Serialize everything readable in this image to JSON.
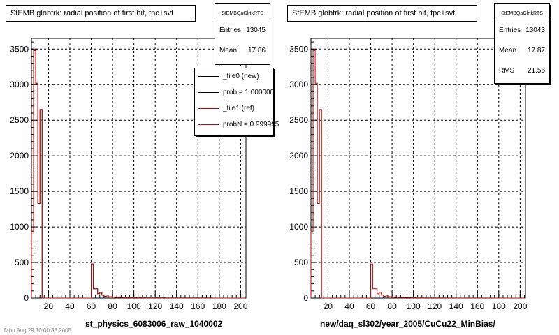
{
  "panels": [
    {
      "title": "StEMB globtrk: radial position of first hit, tpc+svt",
      "xlabel": "st_physics_6083006_raw_1040002",
      "stats": {
        "header": "StEMBQaGlrtkRTS",
        "rows": [
          {
            "label": "Entries",
            "value": "13045"
          },
          {
            "label": "Mean",
            "value": "17.86"
          }
        ]
      },
      "legend": [
        {
          "label": "_file0 (new)",
          "color": "#000000"
        },
        {
          "label": "prob = 1.000000",
          "color": "#000000"
        },
        {
          "label": "_file1 (ref)",
          "color": "#cc0000"
        },
        {
          "label": "probN = 0.999995",
          "color": "#cc0000"
        }
      ]
    },
    {
      "title": "StEMB globtrk: radial position of first hit, tpc+svt",
      "xlabel": "new/daq_sl302/year_2005/CuCu22_MinBias/",
      "stats": {
        "header": "StEMBQaGlrtkRTS",
        "rows": [
          {
            "label": "Entries",
            "value": "13043"
          },
          {
            "label": "Mean",
            "value": "17.87"
          },
          {
            "label": "RMS",
            "value": "21.56"
          }
        ]
      },
      "legend": []
    }
  ],
  "footer": "Mon Aug 29 10:00:33 2005",
  "chart_data": [
    {
      "type": "histogram",
      "title": "StEMB globtrk: radial position of first hit, tpc+svt",
      "xlabel": "st_physics_6083006_raw_1040002",
      "xlim": [
        4,
        205
      ],
      "ylim": [
        0,
        3650
      ],
      "xticks": [
        20,
        40,
        60,
        80,
        100,
        120,
        140,
        160,
        180,
        200
      ],
      "yticks": [
        0,
        500,
        1000,
        1500,
        2000,
        2500,
        3000,
        3500
      ],
      "grid": true,
      "bin_width": 2,
      "bin_start": 4,
      "series": [
        {
          "name": "_file0 (new)",
          "color": "#000000",
          "values": [
            940,
            3480,
            3020,
            1330,
            2650,
            0,
            0,
            0,
            0,
            0,
            0,
            0,
            0,
            0,
            0,
            0,
            0,
            0,
            0,
            0,
            0,
            0,
            0,
            0,
            0,
            0,
            0,
            0,
            480,
            130,
            130,
            60,
            80,
            40,
            25,
            30,
            20,
            20,
            15,
            10,
            12,
            8,
            10,
            6,
            8,
            5,
            6,
            4,
            5,
            4,
            3,
            4,
            3,
            3,
            2,
            2,
            2,
            2,
            2,
            2,
            2,
            2,
            2,
            1,
            1,
            1,
            1,
            1,
            1,
            1,
            1,
            1,
            1,
            1,
            1,
            1,
            1,
            1,
            1,
            1,
            1,
            1,
            1,
            1,
            1,
            0,
            0,
            0,
            0,
            0,
            0,
            0,
            0,
            0,
            0,
            0,
            0,
            0,
            0,
            0
          ]
        },
        {
          "name": "_file1 (ref)",
          "color": "#cc0000",
          "values": [
            940,
            3480,
            3020,
            1330,
            2650,
            0,
            0,
            0,
            0,
            0,
            0,
            0,
            0,
            0,
            0,
            0,
            0,
            0,
            0,
            0,
            0,
            0,
            0,
            0,
            0,
            0,
            0,
            0,
            480,
            130,
            130,
            60,
            80,
            40,
            25,
            30,
            20,
            20,
            15,
            10,
            12,
            8,
            10,
            6,
            8,
            5,
            6,
            4,
            5,
            4,
            3,
            4,
            3,
            3,
            2,
            2,
            2,
            2,
            2,
            2,
            2,
            2,
            2,
            1,
            1,
            1,
            1,
            1,
            1,
            1,
            1,
            1,
            1,
            1,
            1,
            1,
            1,
            1,
            1,
            1,
            1,
            1,
            1,
            1,
            1,
            0,
            0,
            0,
            0,
            0,
            0,
            0,
            0,
            0,
            0,
            0,
            0,
            0,
            0,
            0
          ]
        }
      ]
    },
    {
      "type": "histogram",
      "title": "StEMB globtrk: radial position of first hit, tpc+svt",
      "xlabel": "new/daq_sl302/year_2005/CuCu22_MinBias/",
      "xlim": [
        4,
        205
      ],
      "ylim": [
        0,
        3650
      ],
      "xticks": [
        20,
        40,
        60,
        80,
        100,
        120,
        140,
        160,
        180,
        200
      ],
      "yticks": [
        0,
        500,
        1000,
        1500,
        2000,
        2500,
        3000,
        3500
      ],
      "grid": true,
      "bin_width": 2,
      "bin_start": 4,
      "series": [
        {
          "name": "_file1 (ref)",
          "color": "#cc0000",
          "values": [
            940,
            3480,
            3020,
            1330,
            2650,
            0,
            0,
            0,
            0,
            0,
            0,
            0,
            0,
            0,
            0,
            0,
            0,
            0,
            0,
            0,
            0,
            0,
            0,
            0,
            0,
            0,
            0,
            0,
            480,
            130,
            130,
            60,
            80,
            40,
            25,
            30,
            20,
            20,
            15,
            10,
            12,
            8,
            10,
            6,
            8,
            5,
            6,
            4,
            5,
            4,
            3,
            4,
            3,
            3,
            2,
            2,
            2,
            2,
            2,
            2,
            2,
            2,
            2,
            1,
            1,
            1,
            1,
            1,
            1,
            1,
            1,
            1,
            1,
            1,
            1,
            1,
            1,
            1,
            1,
            1,
            1,
            1,
            1,
            1,
            1,
            0,
            0,
            0,
            0,
            0,
            0,
            0,
            0,
            0,
            0,
            0,
            0,
            0,
            0,
            0
          ]
        }
      ]
    }
  ]
}
